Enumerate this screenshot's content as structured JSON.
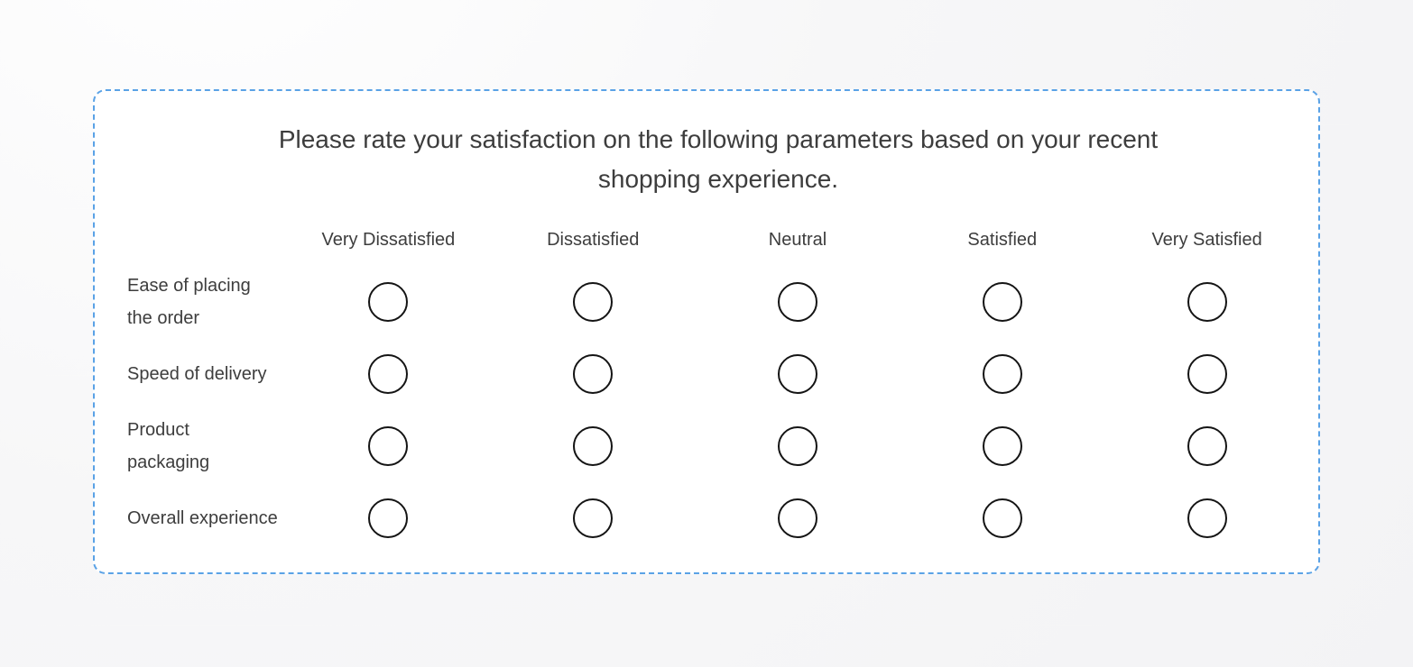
{
  "survey": {
    "title": "Please rate your satisfaction on the following parameters based on your recent shopping experience.",
    "columns": [
      "Very Dissatisfied",
      "Dissatisfied",
      "Neutral",
      "Satisfied",
      "Very Satisfied"
    ],
    "rows": [
      {
        "label": "Ease of placing\nthe order"
      },
      {
        "label": "Speed of delivery"
      },
      {
        "label": "Product\npackaging"
      },
      {
        "label": "Overall experience"
      }
    ],
    "colors": {
      "panel_border": "#5aa2e6",
      "panel_bg": "#ffffff",
      "text": "#3d3d3d",
      "radio_border": "#141414",
      "page_bg": "#f5f5f6"
    }
  }
}
